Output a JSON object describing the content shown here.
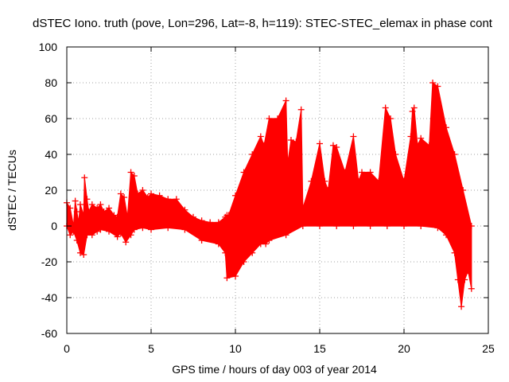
{
  "chart_data": {
    "type": "scatter",
    "title": "dSTEC Iono. truth (pove, Lon=296, Lat=-8, h=119): STEC-STEC_elemax in phase cont",
    "xlabel": "GPS time / hours of day 003 of year 2014",
    "ylabel": "dSTEC  / TECUs",
    "xlim": [
      0,
      25
    ],
    "ylim": [
      -60,
      100
    ],
    "xticks": [
      0,
      5,
      10,
      15,
      20,
      25
    ],
    "yticks": [
      -60,
      -40,
      -20,
      0,
      20,
      40,
      60,
      80,
      100
    ],
    "grid": true,
    "legend": "none",
    "marker": "+",
    "series_color": "#ff0000",
    "series": [
      {
        "name": "dSTEC",
        "upper_envelope": {
          "x": [
            0.0,
            0.2,
            0.4,
            0.5,
            0.6,
            0.7,
            0.8,
            1.0,
            1.05,
            1.2,
            1.3,
            1.5,
            1.8,
            2.0,
            2.2,
            2.5,
            2.8,
            3.0,
            3.2,
            3.4,
            3.6,
            3.8,
            4.0,
            4.2,
            4.5,
            4.8,
            5.0,
            5.5,
            6.0,
            6.5,
            7.0,
            7.5,
            8.0,
            8.5,
            9.0,
            9.4,
            9.5,
            9.6,
            10.0,
            10.5,
            11.0,
            11.5,
            11.7,
            12.0,
            12.5,
            13.0,
            13.1,
            13.3,
            13.6,
            13.9,
            14.0,
            14.5,
            15.0,
            15.3,
            15.5,
            15.8,
            16.0,
            16.5,
            17.0,
            17.3,
            17.5,
            18.0,
            18.5,
            18.9,
            19.2,
            19.5,
            20.0,
            20.4,
            20.5,
            20.6,
            20.8,
            21.0,
            21.5,
            21.7,
            22.0,
            22.5,
            23.0,
            23.5,
            24.0
          ],
          "y": [
            13,
            10,
            0,
            14,
            8,
            2,
            12,
            6,
            27,
            15,
            8,
            12,
            10,
            12,
            8,
            10,
            6,
            5,
            18,
            16,
            5,
            30,
            28,
            18,
            20,
            16,
            18,
            17,
            15,
            15,
            9,
            5,
            3,
            2,
            2,
            5,
            6,
            6,
            17,
            30,
            40,
            50,
            45,
            60,
            60,
            70,
            35,
            48,
            47,
            65,
            10,
            25,
            46,
            25,
            20,
            45,
            44,
            30,
            50,
            25,
            30,
            30,
            25,
            66,
            60,
            40,
            25,
            50,
            64,
            66,
            45,
            49,
            45,
            80,
            78,
            55,
            40,
            20,
            0
          ]
        },
        "lower_envelope": {
          "x": [
            0.0,
            0.2,
            0.4,
            0.6,
            0.8,
            1.0,
            1.2,
            1.5,
            1.8,
            2.0,
            2.5,
            3.0,
            3.2,
            3.5,
            3.8,
            4.0,
            4.5,
            5.0,
            6.0,
            7.0,
            8.0,
            9.0,
            9.4,
            9.5,
            10.0,
            10.5,
            11.0,
            11.5,
            11.8,
            12.0,
            13.0,
            14.0,
            15.0,
            16.0,
            17.0,
            18.0,
            19.0,
            20.0,
            21.0,
            22.0,
            22.5,
            23.0,
            23.2,
            23.4,
            23.6,
            23.8,
            24.0
          ],
          "y": [
            0,
            -5,
            -3,
            -8,
            -15,
            -16,
            -5,
            -5,
            -3,
            -2,
            -3,
            -6,
            -4,
            -9,
            -5,
            -2,
            -1,
            -2,
            -1,
            -2,
            -8,
            -10,
            -15,
            -29,
            -28,
            -20,
            -15,
            -10,
            -10,
            -8,
            -5,
            0,
            0,
            0,
            0,
            0,
            0,
            0,
            0,
            -1,
            -5,
            -15,
            -30,
            -45,
            -30,
            -25,
            -35
          ]
        }
      }
    ]
  }
}
